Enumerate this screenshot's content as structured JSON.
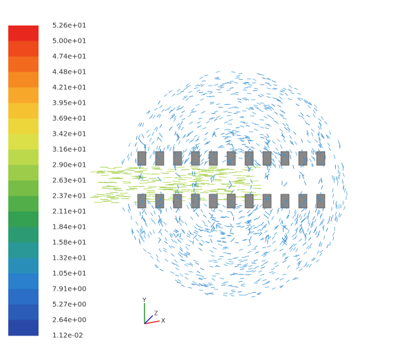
{
  "colorbar": {
    "labels": [
      "5.26e+01",
      "5.00e+01",
      "4.74e+01",
      "4.48e+01",
      "4.21e+01",
      "3.95e+01",
      "3.69e+01",
      "3.42e+01",
      "3.16e+01",
      "2.90e+01",
      "2.63e+01",
      "2.37e+01",
      "2.11e+01",
      "1.84e+01",
      "1.58e+01",
      "1.32e+01",
      "1.05e+01",
      "7.91e+00",
      "5.27e+00",
      "2.64e+00",
      "1.12e-02"
    ],
    "colors": [
      "#e8281e",
      "#ee4a1c",
      "#f26a1e",
      "#f58a22",
      "#f7a82a",
      "#f5c232",
      "#ecd63c",
      "#dbe048",
      "#bcd94c",
      "#9ccc4a",
      "#78be46",
      "#52ae48",
      "#34a052",
      "#2c9a72",
      "#2a9896",
      "#2a8fb8",
      "#2a80cc",
      "#2a6ec8",
      "#2a5cb8",
      "#2a48a8"
    ]
  },
  "triad": {
    "labels": [
      "Y",
      "Z",
      "X"
    ]
  }
}
